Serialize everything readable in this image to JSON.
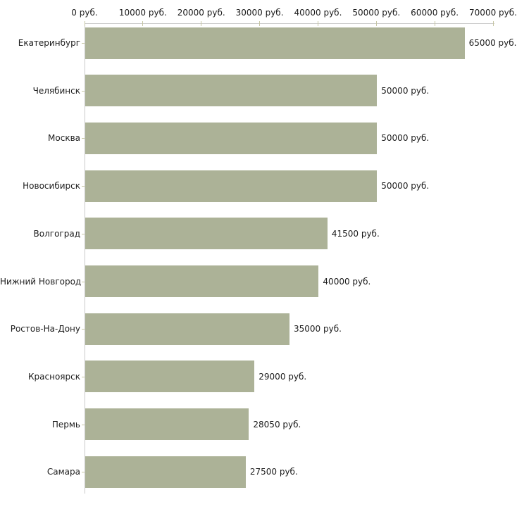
{
  "chart_data": {
    "type": "bar",
    "orientation": "horizontal",
    "title": "",
    "unit": "руб.",
    "categories": [
      "Екатеринбург",
      "Челябинск",
      "Москва",
      "Новосибирск",
      "Волгоград",
      "Нижний Новгород",
      "Ростов-На-Дону",
      "Красноярск",
      "Пермь",
      "Самара"
    ],
    "values": [
      65000,
      50000,
      50000,
      50000,
      41500,
      40000,
      35000,
      29000,
      28050,
      27500
    ],
    "bar_labels": [
      "65000 руб.",
      "50000 руб.",
      "50000 руб.",
      "50000 руб.",
      "41500 руб.",
      "40000 руб.",
      "35000 руб.",
      "29000 руб.",
      "28050 руб.",
      "27500 руб."
    ],
    "x_axis": {
      "position": "top",
      "min": 0,
      "max": 70000,
      "ticks": [
        0,
        10000,
        20000,
        30000,
        40000,
        50000,
        60000,
        70000
      ],
      "tick_labels": [
        "0 руб.",
        "10000 руб.",
        "20000 руб.",
        "30000 руб.",
        "40000 руб.",
        "50000 руб.",
        "60000 руб.",
        "70000 руб."
      ]
    },
    "grid": false,
    "legend": false,
    "colors": {
      "bar": "#acb297",
      "axis_line": "#c9c9c9",
      "tick_mark": "#c6c6a4",
      "text": "#1b1b1b",
      "background": "#ffffff"
    }
  }
}
